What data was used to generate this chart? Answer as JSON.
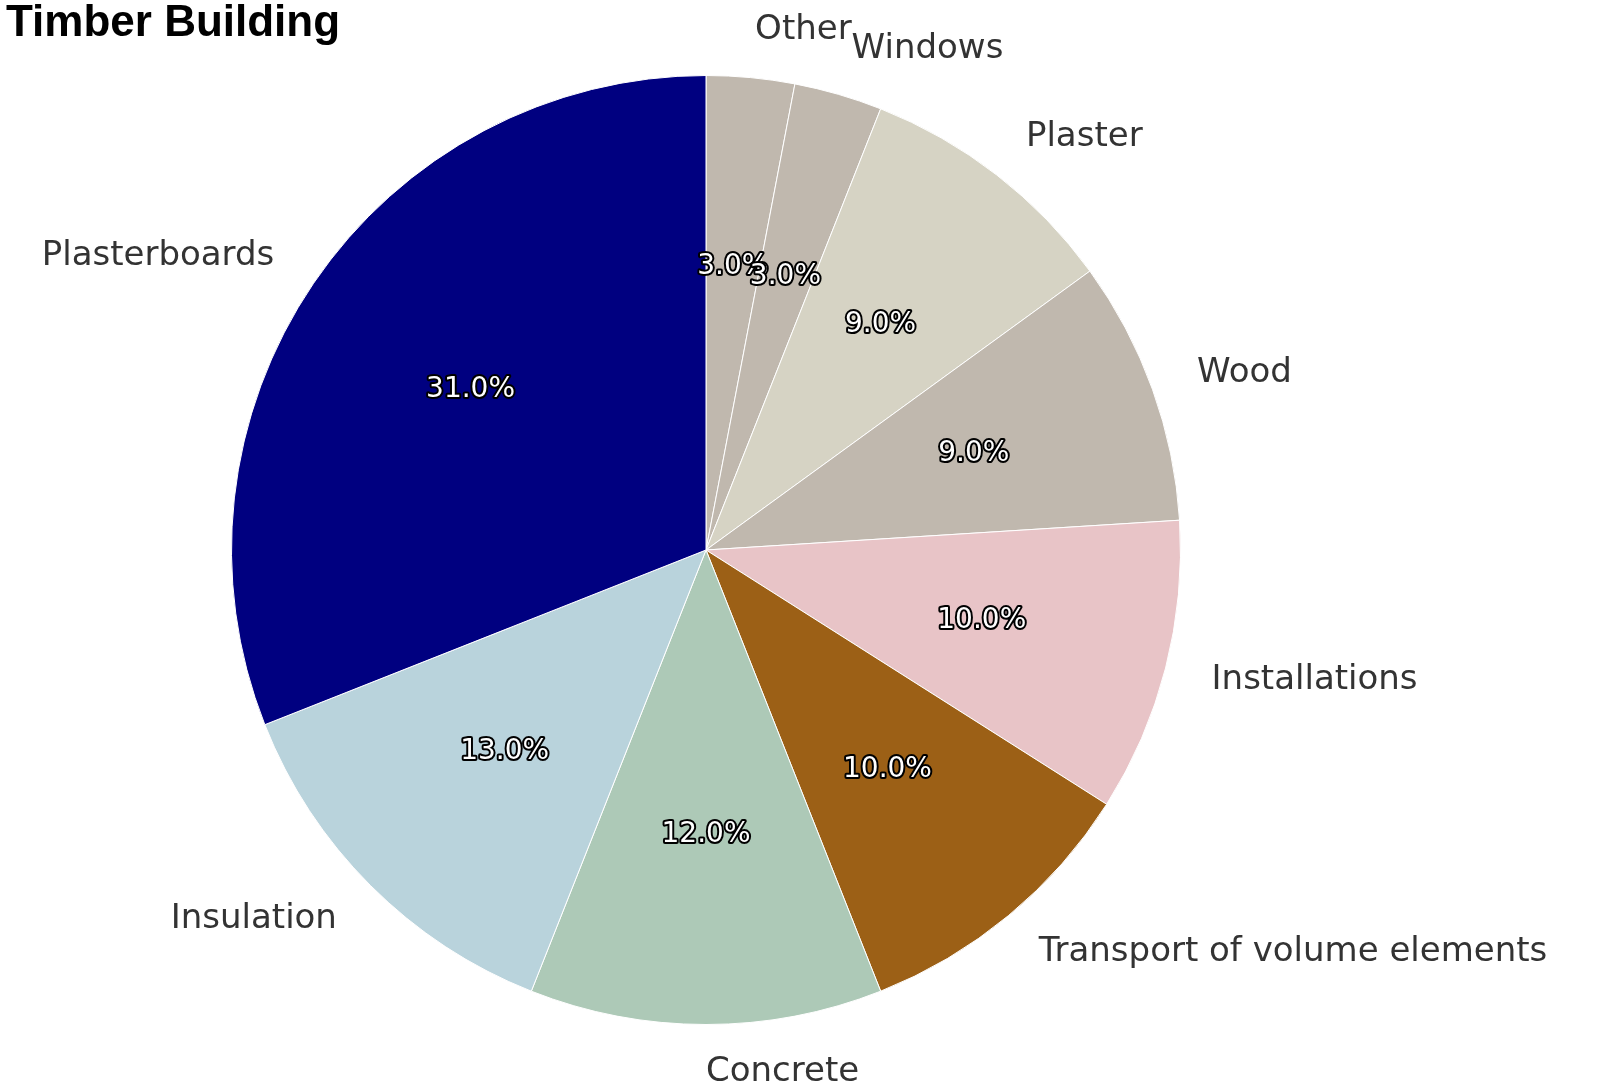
{
  "chart_data": {
    "type": "pie",
    "title": "Timber Building",
    "categories": [
      "Other",
      "Windows",
      "Plaster",
      "Wood",
      "Installations",
      "Transport of volume elements",
      "Concrete",
      "Insulation",
      "Plasterboards"
    ],
    "values": [
      3,
      3,
      9,
      9,
      10,
      10,
      12,
      13,
      31
    ],
    "colors": [
      "#c0b8ae",
      "#c0b8ae",
      "#d6d3c4",
      "#c0b8ae",
      "#e8c4c7",
      "#9c6016",
      "#adc9b7",
      "#b9d3dc",
      "#000080"
    ],
    "value_labels": [
      "3.0%",
      "3.0%",
      "9.0%",
      "9.0%",
      "10.0%",
      "10.0%",
      "12.0%",
      "13.0%",
      "31.0%"
    ],
    "legend": false
  }
}
